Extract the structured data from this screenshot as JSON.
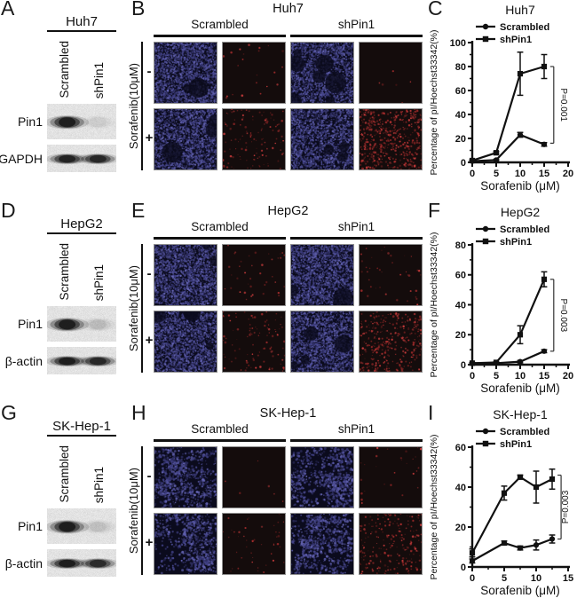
{
  "panels": {
    "A": {
      "letter": "A",
      "cell_line": "Huh7",
      "lanes": [
        "Scrambled",
        "shPin1"
      ],
      "blots": [
        {
          "protein": "Pin1",
          "bands": [
            1,
            0.06
          ]
        },
        {
          "protein": "GAPDH",
          "bands": [
            0.95,
            0.9
          ]
        }
      ]
    },
    "B": {
      "letter": "B",
      "cell_line": "Huh7",
      "groups": [
        "Scrambled",
        "shPin1"
      ],
      "side_label": "Sorafenib(10μM)",
      "row_signs": [
        "-",
        "+"
      ],
      "images": [
        [
          {
            "stain": "hoechst",
            "density": 0.85,
            "voids": 2
          },
          {
            "stain": "pi",
            "density": 0.04
          },
          {
            "stain": "hoechst",
            "density": 0.8,
            "voids": 7
          },
          {
            "stain": "pi",
            "density": 0.01
          }
        ],
        [
          {
            "stain": "hoechst",
            "density": 0.8,
            "voids": 3
          },
          {
            "stain": "pi",
            "density": 0.22
          },
          {
            "stain": "hoechst",
            "density": 0.75,
            "voids": 3
          },
          {
            "stain": "pi",
            "density": 0.95
          }
        ]
      ]
    },
    "C": {
      "letter": "C"
    },
    "D": {
      "letter": "D",
      "cell_line": "HepG2",
      "lanes": [
        "Scrambled",
        "shPin1"
      ],
      "blots": [
        {
          "protein": "Pin1",
          "bands": [
            1,
            0.12
          ]
        },
        {
          "protein": "β-actin",
          "bands": [
            1,
            0.9
          ]
        }
      ]
    },
    "E": {
      "letter": "E",
      "cell_line": "HepG2",
      "groups": [
        "Scrambled",
        "shPin1"
      ],
      "side_label": "Sorafenib(10μM)",
      "row_signs": [
        "-",
        "+"
      ],
      "images": [
        [
          {
            "stain": "hoechst",
            "density": 0.85,
            "voids": 2
          },
          {
            "stain": "pi",
            "density": 0.07
          },
          {
            "stain": "hoechst",
            "density": 0.85,
            "voids": 2
          },
          {
            "stain": "pi",
            "density": 0.07
          }
        ],
        [
          {
            "stain": "hoechst",
            "density": 0.8,
            "voids": 4
          },
          {
            "stain": "pi",
            "density": 0.18
          },
          {
            "stain": "hoechst",
            "density": 0.8,
            "voids": 4
          },
          {
            "stain": "pi",
            "density": 0.6
          }
        ]
      ]
    },
    "F": {
      "letter": "F"
    },
    "G": {
      "letter": "G",
      "cell_line": "SK-Hep-1",
      "lanes": [
        "Scrambled",
        "shPin1"
      ],
      "blots": [
        {
          "protein": "Pin1",
          "bands": [
            1,
            0.1
          ]
        },
        {
          "protein": "β-actin",
          "bands": [
            1,
            0.85
          ]
        }
      ]
    },
    "H": {
      "letter": "H",
      "cell_line": "SK-Hep-1",
      "groups": [
        "Scrambled",
        "shPin1"
      ],
      "side_label": "Sorafenib(10μM)",
      "row_signs": [
        "-",
        "+"
      ],
      "images": [
        [
          {
            "stain": "hoechst",
            "density": 0.3,
            "cluster": true
          },
          {
            "stain": "pi",
            "density": 0.01
          },
          {
            "stain": "hoechst",
            "density": 0.32,
            "cluster": true
          },
          {
            "stain": "pi",
            "density": 0.05
          }
        ],
        [
          {
            "stain": "hoechst",
            "density": 0.28,
            "cluster": true
          },
          {
            "stain": "pi",
            "density": 0.08
          },
          {
            "stain": "hoechst",
            "density": 0.3,
            "cluster": true
          },
          {
            "stain": "pi",
            "density": 0.4
          }
        ]
      ]
    },
    "I": {
      "letter": "I"
    }
  },
  "chart_data": [
    {
      "type": "line",
      "title": "Huh7",
      "xlabel": "Sorafenib (μM)",
      "ylabel": "Percentage of pI/Hoechst33342(%)",
      "xlim": [
        0,
        20
      ],
      "ylim": [
        0,
        100
      ],
      "xticks": [
        0,
        5,
        10,
        15,
        20
      ],
      "yticks": [
        0,
        20,
        40,
        60,
        80,
        100
      ],
      "x": [
        0,
        5,
        10,
        15
      ],
      "legend_position": "top",
      "series": [
        {
          "name": "Scrambled",
          "marker": "circle",
          "values": [
            1,
            2,
            23,
            15
          ],
          "errors": [
            0.5,
            0.5,
            2,
            1.5
          ]
        },
        {
          "name": "shPin1",
          "marker": "square",
          "values": [
            1.5,
            8,
            74,
            80
          ],
          "errors": [
            0.5,
            1,
            18,
            10
          ]
        }
      ],
      "pvalue": "P=0.001",
      "bracket": {
        "x": 17,
        "y_top": 80,
        "y_bottom": 16,
        "p_direction": "down"
      }
    },
    {
      "type": "line",
      "title": "HepG2",
      "xlabel": "Sorafenib (μM)",
      "ylabel": "Percentage of pI/Hoechst33342(%)",
      "xlim": [
        0,
        20
      ],
      "ylim": [
        0,
        80
      ],
      "xticks": [
        0,
        5,
        10,
        15,
        20
      ],
      "yticks": [
        0,
        20,
        40,
        60,
        80
      ],
      "x": [
        0,
        5,
        10,
        15
      ],
      "legend_position": "top",
      "series": [
        {
          "name": "Scrambled",
          "marker": "circle",
          "values": [
            1,
            1,
            2,
            9
          ],
          "errors": [
            0.3,
            0.3,
            0.8,
            1
          ]
        },
        {
          "name": "shPin1",
          "marker": "square",
          "values": [
            1,
            1.5,
            20,
            57
          ],
          "errors": [
            0.3,
            0.4,
            6,
            5
          ]
        }
      ],
      "pvalue": "P=0.003",
      "bracket": {
        "x": 17,
        "y_top": 57,
        "y_bottom": 9,
        "p_direction": "down"
      }
    },
    {
      "type": "line",
      "title": "SK-Hep-1",
      "xlabel": "Sorafenib (μM)",
      "ylabel": "Percentage of pI/Hoechst33342(%)",
      "xlim": [
        0,
        15
      ],
      "ylim": [
        0,
        60
      ],
      "xticks": [
        0,
        5,
        10,
        15
      ],
      "yticks": [
        0,
        20,
        40,
        60
      ],
      "x": [
        0,
        5,
        7.5,
        10,
        12.5
      ],
      "legend_position": "top",
      "series": [
        {
          "name": "Scrambled",
          "marker": "circle",
          "values": [
            3,
            12,
            9.5,
            11,
            14
          ],
          "errors": [
            1,
            1,
            1,
            2.5,
            2
          ]
        },
        {
          "name": "shPin1",
          "marker": "square",
          "values": [
            7,
            37,
            45,
            40,
            44
          ],
          "errors": [
            2,
            3.5,
            1,
            8,
            5
          ]
        }
      ],
      "pvalue": "P=0.003",
      "bracket": {
        "x": 13.9,
        "y_top": 46,
        "y_bottom": 14,
        "p_direction": "up"
      }
    }
  ]
}
